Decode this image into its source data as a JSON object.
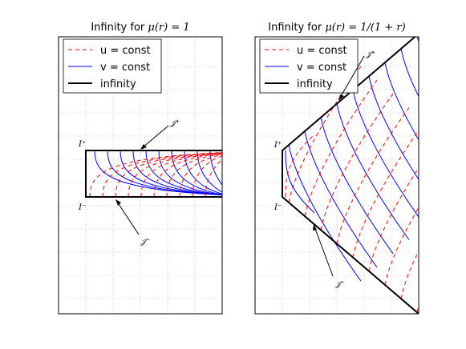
{
  "chart_data": [
    {
      "type": "line",
      "title_prefix": "Infinity for ",
      "title_math": "μ(r) = 1",
      "legend": {
        "placement": "top-left",
        "entries": [
          {
            "label": "u = const",
            "style": "dashed",
            "color": "#ff0000"
          },
          {
            "label": "v = const",
            "style": "solid",
            "color": "#0000ff"
          },
          {
            "label": "infinity",
            "style": "solid-thick",
            "color": "#000000"
          }
        ]
      },
      "annotations": [
        {
          "label": "𝒥⁺",
          "role": "future null infinity"
        },
        {
          "label": "𝒥⁻",
          "role": "past null infinity"
        },
        {
          "label": "I⁺",
          "role": "future timelike infinity"
        },
        {
          "label": "I⁻",
          "role": "past timelike infinity"
        }
      ],
      "grid": true,
      "shape": "strip"
    },
    {
      "type": "line",
      "title_prefix": "Infinity for ",
      "title_math": "μ(r) = 1/(1 + r)",
      "legend": {
        "placement": "top-left",
        "entries": [
          {
            "label": "u = const",
            "style": "dashed",
            "color": "#ff0000"
          },
          {
            "label": "v = const",
            "style": "solid",
            "color": "#0000ff"
          },
          {
            "label": "infinity",
            "style": "solid-thick",
            "color": "#000000"
          }
        ]
      },
      "annotations": [
        {
          "label": "𝒥⁺",
          "role": "future null infinity"
        },
        {
          "label": "𝒥⁻",
          "role": "past null infinity"
        },
        {
          "label": "I⁺",
          "role": "future timelike infinity"
        },
        {
          "label": "I⁻",
          "role": "past timelike infinity"
        }
      ],
      "grid": true,
      "shape": "wedge"
    }
  ]
}
